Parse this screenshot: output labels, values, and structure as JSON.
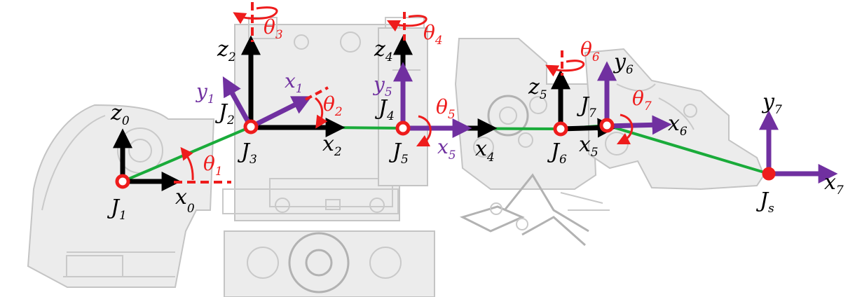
{
  "colors": {
    "link": "#1aab3a",
    "frame_black": "#000000",
    "frame_purple": "#7030a0",
    "angle_red": "#ee1c1c",
    "joint_ring": "#ee1c1c",
    "sketch": "#c8c8c8"
  },
  "joints": [
    "J1",
    "J2",
    "J3",
    "J4",
    "J5",
    "J6",
    "J7",
    "Js"
  ],
  "labels": {
    "j1": {
      "base": "J",
      "sub": "1"
    },
    "j2": {
      "base": "J",
      "sub": "2"
    },
    "j3": {
      "base": "J",
      "sub": "3"
    },
    "j4": {
      "base": "J",
      "sub": "4"
    },
    "j5": {
      "base": "J",
      "sub": "5"
    },
    "j6": {
      "base": "J",
      "sub": "6"
    },
    "j7": {
      "base": "J",
      "sub": "7"
    },
    "js": {
      "base": "J",
      "sub": "s"
    },
    "z0": {
      "base": "z",
      "sub": "0"
    },
    "x0": {
      "base": "x",
      "sub": "0"
    },
    "z2": {
      "base": "z",
      "sub": "2"
    },
    "x2": {
      "base": "x",
      "sub": "2"
    },
    "y1": {
      "base": "y",
      "sub": "1"
    },
    "x1": {
      "base": "x",
      "sub": "1"
    },
    "z4": {
      "base": "z",
      "sub": "4"
    },
    "x4": {
      "base": "x",
      "sub": "4"
    },
    "y5": {
      "base": "y",
      "sub": "5"
    },
    "x5p": {
      "base": "x",
      "sub": "5"
    },
    "z5": {
      "base": "z",
      "sub": "5"
    },
    "x5": {
      "base": "x",
      "sub": "5"
    },
    "y6": {
      "base": "y",
      "sub": "6"
    },
    "x6": {
      "base": "x",
      "sub": "6"
    },
    "y7": {
      "base": "y",
      "sub": "7"
    },
    "x7": {
      "base": "x",
      "sub": "7"
    },
    "t1": {
      "base": "θ",
      "sub": "1"
    },
    "t2": {
      "base": "θ",
      "sub": "2"
    },
    "t3": {
      "base": "θ",
      "sub": "3"
    },
    "t4": {
      "base": "θ",
      "sub": "4"
    },
    "t5": {
      "base": "θ",
      "sub": "5"
    },
    "t6": {
      "base": "θ",
      "sub": "6"
    },
    "t7": {
      "base": "θ",
      "sub": "7"
    }
  }
}
